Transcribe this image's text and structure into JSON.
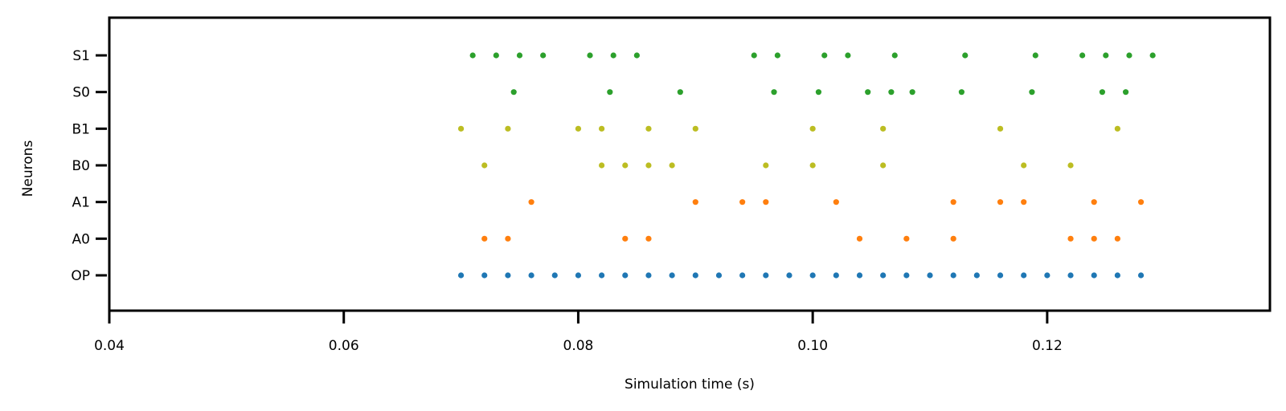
{
  "chart_data": {
    "type": "scatter",
    "title": "",
    "xlabel": "Simulation time (s)",
    "ylabel": "Neurons",
    "xlim": [
      0.04,
      0.139
    ],
    "xticks": [
      0.04,
      0.06,
      0.08,
      0.1,
      0.12
    ],
    "xtick_labels": [
      "0.04",
      "0.06",
      "0.08",
      "0.10",
      "0.12"
    ],
    "categories": [
      "OP",
      "A0",
      "A1",
      "B0",
      "B1",
      "S0",
      "S1"
    ],
    "grid": false,
    "legend": "none",
    "series": [
      {
        "category": "OP",
        "color": "#1f77b4",
        "x": [
          0.07,
          0.072,
          0.074,
          0.076,
          0.078,
          0.08,
          0.082,
          0.084,
          0.086,
          0.088,
          0.09,
          0.092,
          0.094,
          0.096,
          0.098,
          0.1,
          0.102,
          0.104,
          0.106,
          0.108,
          0.11,
          0.112,
          0.114,
          0.116,
          0.118,
          0.12,
          0.122,
          0.124,
          0.126,
          0.128
        ]
      },
      {
        "category": "A0",
        "color": "#ff7f0e",
        "x": [
          0.072,
          0.074,
          0.084,
          0.086,
          0.104,
          0.108,
          0.112,
          0.122,
          0.124,
          0.126
        ]
      },
      {
        "category": "A1",
        "color": "#ff7f0e",
        "x": [
          0.076,
          0.09,
          0.094,
          0.096,
          0.102,
          0.112,
          0.116,
          0.118,
          0.124,
          0.128
        ]
      },
      {
        "category": "B0",
        "color": "#bcbd22",
        "x": [
          0.072,
          0.082,
          0.084,
          0.086,
          0.088,
          0.096,
          0.1,
          0.106,
          0.118,
          0.122
        ]
      },
      {
        "category": "B1",
        "color": "#bcbd22",
        "x": [
          0.07,
          0.074,
          0.08,
          0.082,
          0.086,
          0.09,
          0.1,
          0.106,
          0.116,
          0.126
        ]
      },
      {
        "category": "S0",
        "color": "#2ca02c",
        "x": [
          0.0745,
          0.0827,
          0.0887,
          0.0967,
          0.1005,
          0.1047,
          0.1067,
          0.1085,
          0.1127,
          0.1187,
          0.1247,
          0.1267
        ]
      },
      {
        "category": "S1",
        "color": "#2ca02c",
        "x": [
          0.071,
          0.073,
          0.075,
          0.077,
          0.081,
          0.083,
          0.085,
          0.095,
          0.097,
          0.101,
          0.103,
          0.107,
          0.113,
          0.119,
          0.123,
          0.125,
          0.127,
          0.129
        ]
      }
    ]
  }
}
